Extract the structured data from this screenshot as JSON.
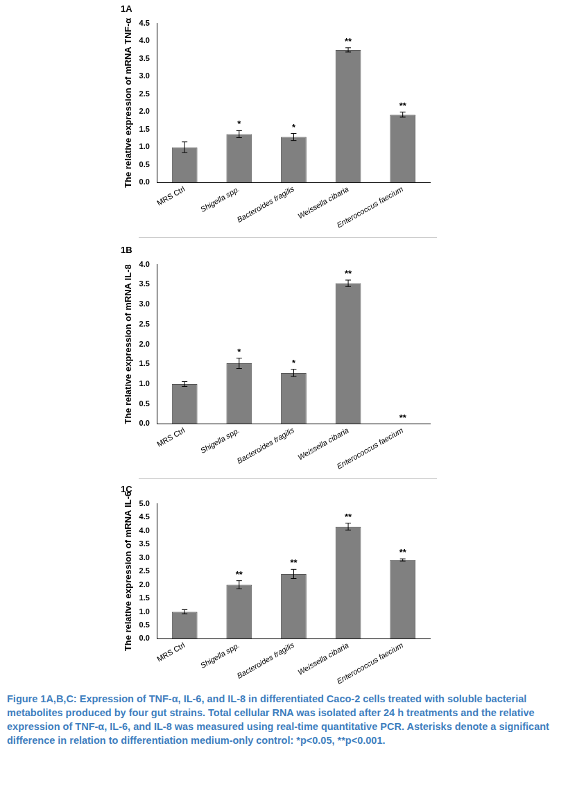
{
  "chart_data": [
    {
      "type": "bar",
      "title": "1A",
      "y_label": "The relative expression of mRNA TNF-α",
      "categories": [
        "MRS Ctrl",
        "Shigella spp.",
        "Bacteroides fragilis",
        "Weissella cibaria",
        "Enterococcus faecium"
      ],
      "values": [
        1.0,
        1.37,
        1.29,
        3.75,
        1.92
      ],
      "errors": [
        0.15,
        0.1,
        0.1,
        0.06,
        0.07
      ],
      "annotations": [
        null,
        "*",
        "*",
        "**",
        "**"
      ],
      "color": "#808080",
      "ylim": [
        0,
        4.5
      ],
      "yticks": [
        {
          "value": 0,
          "label": "0.0"
        },
        0.5,
        {
          "value": 1,
          "label": "1.0"
        },
        1.5,
        {
          "value": 2,
          "label": "2.0"
        },
        2.5,
        {
          "value": 3,
          "label": "3.0"
        },
        3.5,
        {
          "value": 4,
          "label": "4.0"
        },
        4.5
      ],
      "grid": false
    },
    {
      "type": "bar",
      "title": "1B",
      "y_label": "The relative expression of mRNA IL-8",
      "categories": [
        "MRS Ctrl",
        "Shigella spp.",
        "Bacteroides fragilis",
        "Weissella cibaria",
        "Enterococcus faecium"
      ],
      "values": [
        1.0,
        1.52,
        1.28,
        3.53,
        0
      ],
      "errors": [
        0.06,
        0.13,
        0.09,
        0.08,
        null
      ],
      "annotations": [
        null,
        "*",
        "*",
        "**",
        "**"
      ],
      "color": "#808080",
      "ylim": [
        0,
        4
      ],
      "yticks": [
        {
          "value": 0,
          "label": "0.0"
        },
        0.5,
        {
          "value": 1,
          "label": "1.0"
        },
        1.5,
        {
          "value": 2,
          "label": "2.0"
        },
        2.5,
        {
          "value": 3,
          "label": "3.0"
        },
        3.5,
        {
          "value": 4,
          "label": "4.0"
        }
      ],
      "grid": false
    },
    {
      "type": "bar",
      "title": "1C",
      "y_label": "The relative expression of mRNA IL-6",
      "categories": [
        "MRS Ctrl",
        "Shigella spp.",
        "Bacteroides fragilis",
        "Weissella cibaria",
        "Enterococcus faecium"
      ],
      "values": [
        1.0,
        2.0,
        2.4,
        4.15,
        2.92
      ],
      "errors": [
        0.08,
        0.15,
        0.17,
        0.13,
        0.04
      ],
      "annotations": [
        null,
        "**",
        "**",
        "**",
        "**"
      ],
      "color": "#808080",
      "ylim": [
        0,
        5
      ],
      "yticks": [
        {
          "value": 0,
          "label": "0.0"
        },
        0.5,
        {
          "value": 1,
          "label": "1.0"
        },
        1.5,
        {
          "value": 2,
          "label": "2.0"
        },
        2.5,
        {
          "value": 3,
          "label": "3.0"
        },
        3.5,
        {
          "value": 4,
          "label": "4.0"
        },
        4.5,
        {
          "value": 5,
          "label": "5.0"
        }
      ],
      "grid": false
    }
  ],
  "caption": "Figure 1A,B,C: Expression of TNF-α, IL-6, and IL-8 in differentiated Caco-2 cells treated with soluble bacterial metabolites produced by four gut strains. Total cellular RNA was isolated after 24 h treatments and the relative expression of TNF-α, IL-6, and IL-8 was measured using real-time quantitative PCR. Asterisks denote a significant difference in relation to differentiation medium-only control: *p<0.05, **p<0.001."
}
